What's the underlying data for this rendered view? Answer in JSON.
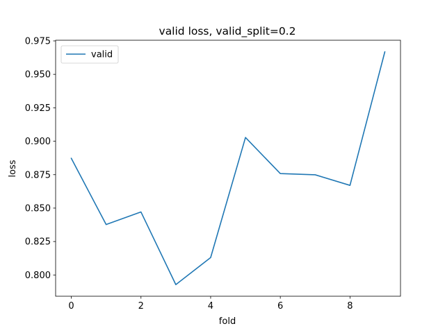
{
  "chart_data": {
    "type": "line",
    "title": "valid loss, valid_split=0.2",
    "xlabel": "fold",
    "ylabel": "loss",
    "x": [
      0,
      1,
      2,
      3,
      4,
      5,
      6,
      7,
      8,
      9
    ],
    "series": [
      {
        "name": "valid",
        "color": "#1f77b4",
        "values": [
          0.8872,
          0.8377,
          0.8471,
          0.7928,
          0.813,
          0.9028,
          0.8758,
          0.8749,
          0.867,
          0.9668
        ]
      }
    ],
    "xlim": [
      -0.45,
      9.45
    ],
    "ylim": [
      0.7841,
      0.9755
    ],
    "xticks": [
      0,
      2,
      4,
      6,
      8
    ],
    "yticks": [
      0.8,
      0.825,
      0.85,
      0.875,
      0.9,
      0.925,
      0.95,
      0.975
    ],
    "xtick_labels": [
      "0",
      "2",
      "4",
      "6",
      "8"
    ],
    "ytick_labels": [
      "0.800",
      "0.825",
      "0.850",
      "0.875",
      "0.900",
      "0.925",
      "0.950",
      "0.975"
    ],
    "legend": "top-left",
    "grid": false
  }
}
